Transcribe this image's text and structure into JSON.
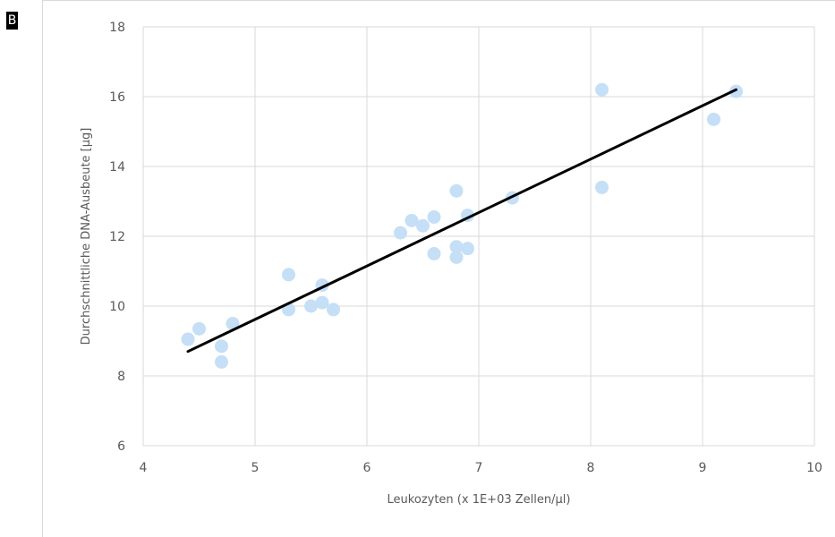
{
  "panel_label": "B",
  "chart_data": {
    "type": "scatter",
    "title": "",
    "xlabel": "Leukozyten (x 1E+03 Zellen/µl)",
    "ylabel": "Durchschnittliche DNA-Ausbeute [µg]",
    "xlim": [
      4,
      10
    ],
    "ylim": [
      6,
      18
    ],
    "xticks": [
      "4",
      "5",
      "6",
      "7",
      "8",
      "9",
      "10"
    ],
    "yticks": [
      "6",
      "8",
      "10",
      "12",
      "14",
      "16",
      "18"
    ],
    "grid": true,
    "legend": "none",
    "marker_color": "#c5dff6",
    "trendline_color": "#000000",
    "series": [
      {
        "points": [
          [
            4.4,
            9.05
          ],
          [
            4.5,
            9.35
          ],
          [
            4.7,
            8.85
          ],
          [
            4.7,
            8.4
          ],
          [
            4.8,
            9.5
          ],
          [
            5.3,
            10.9
          ],
          [
            5.3,
            9.9
          ],
          [
            5.5,
            10.0
          ],
          [
            5.6,
            10.6
          ],
          [
            5.6,
            10.1
          ],
          [
            5.7,
            9.9
          ],
          [
            6.3,
            12.1
          ],
          [
            6.4,
            12.45
          ],
          [
            6.5,
            12.3
          ],
          [
            6.6,
            12.55
          ],
          [
            6.6,
            11.5
          ],
          [
            6.8,
            13.3
          ],
          [
            6.8,
            11.7
          ],
          [
            6.8,
            11.4
          ],
          [
            6.9,
            12.6
          ],
          [
            6.9,
            11.65
          ],
          [
            7.3,
            13.1
          ],
          [
            8.1,
            16.2
          ],
          [
            8.1,
            13.4
          ],
          [
            9.1,
            15.35
          ],
          [
            9.3,
            16.15
          ]
        ]
      }
    ],
    "trendline": {
      "x": [
        4.4,
        9.3
      ],
      "y": [
        8.7,
        16.2
      ]
    }
  }
}
